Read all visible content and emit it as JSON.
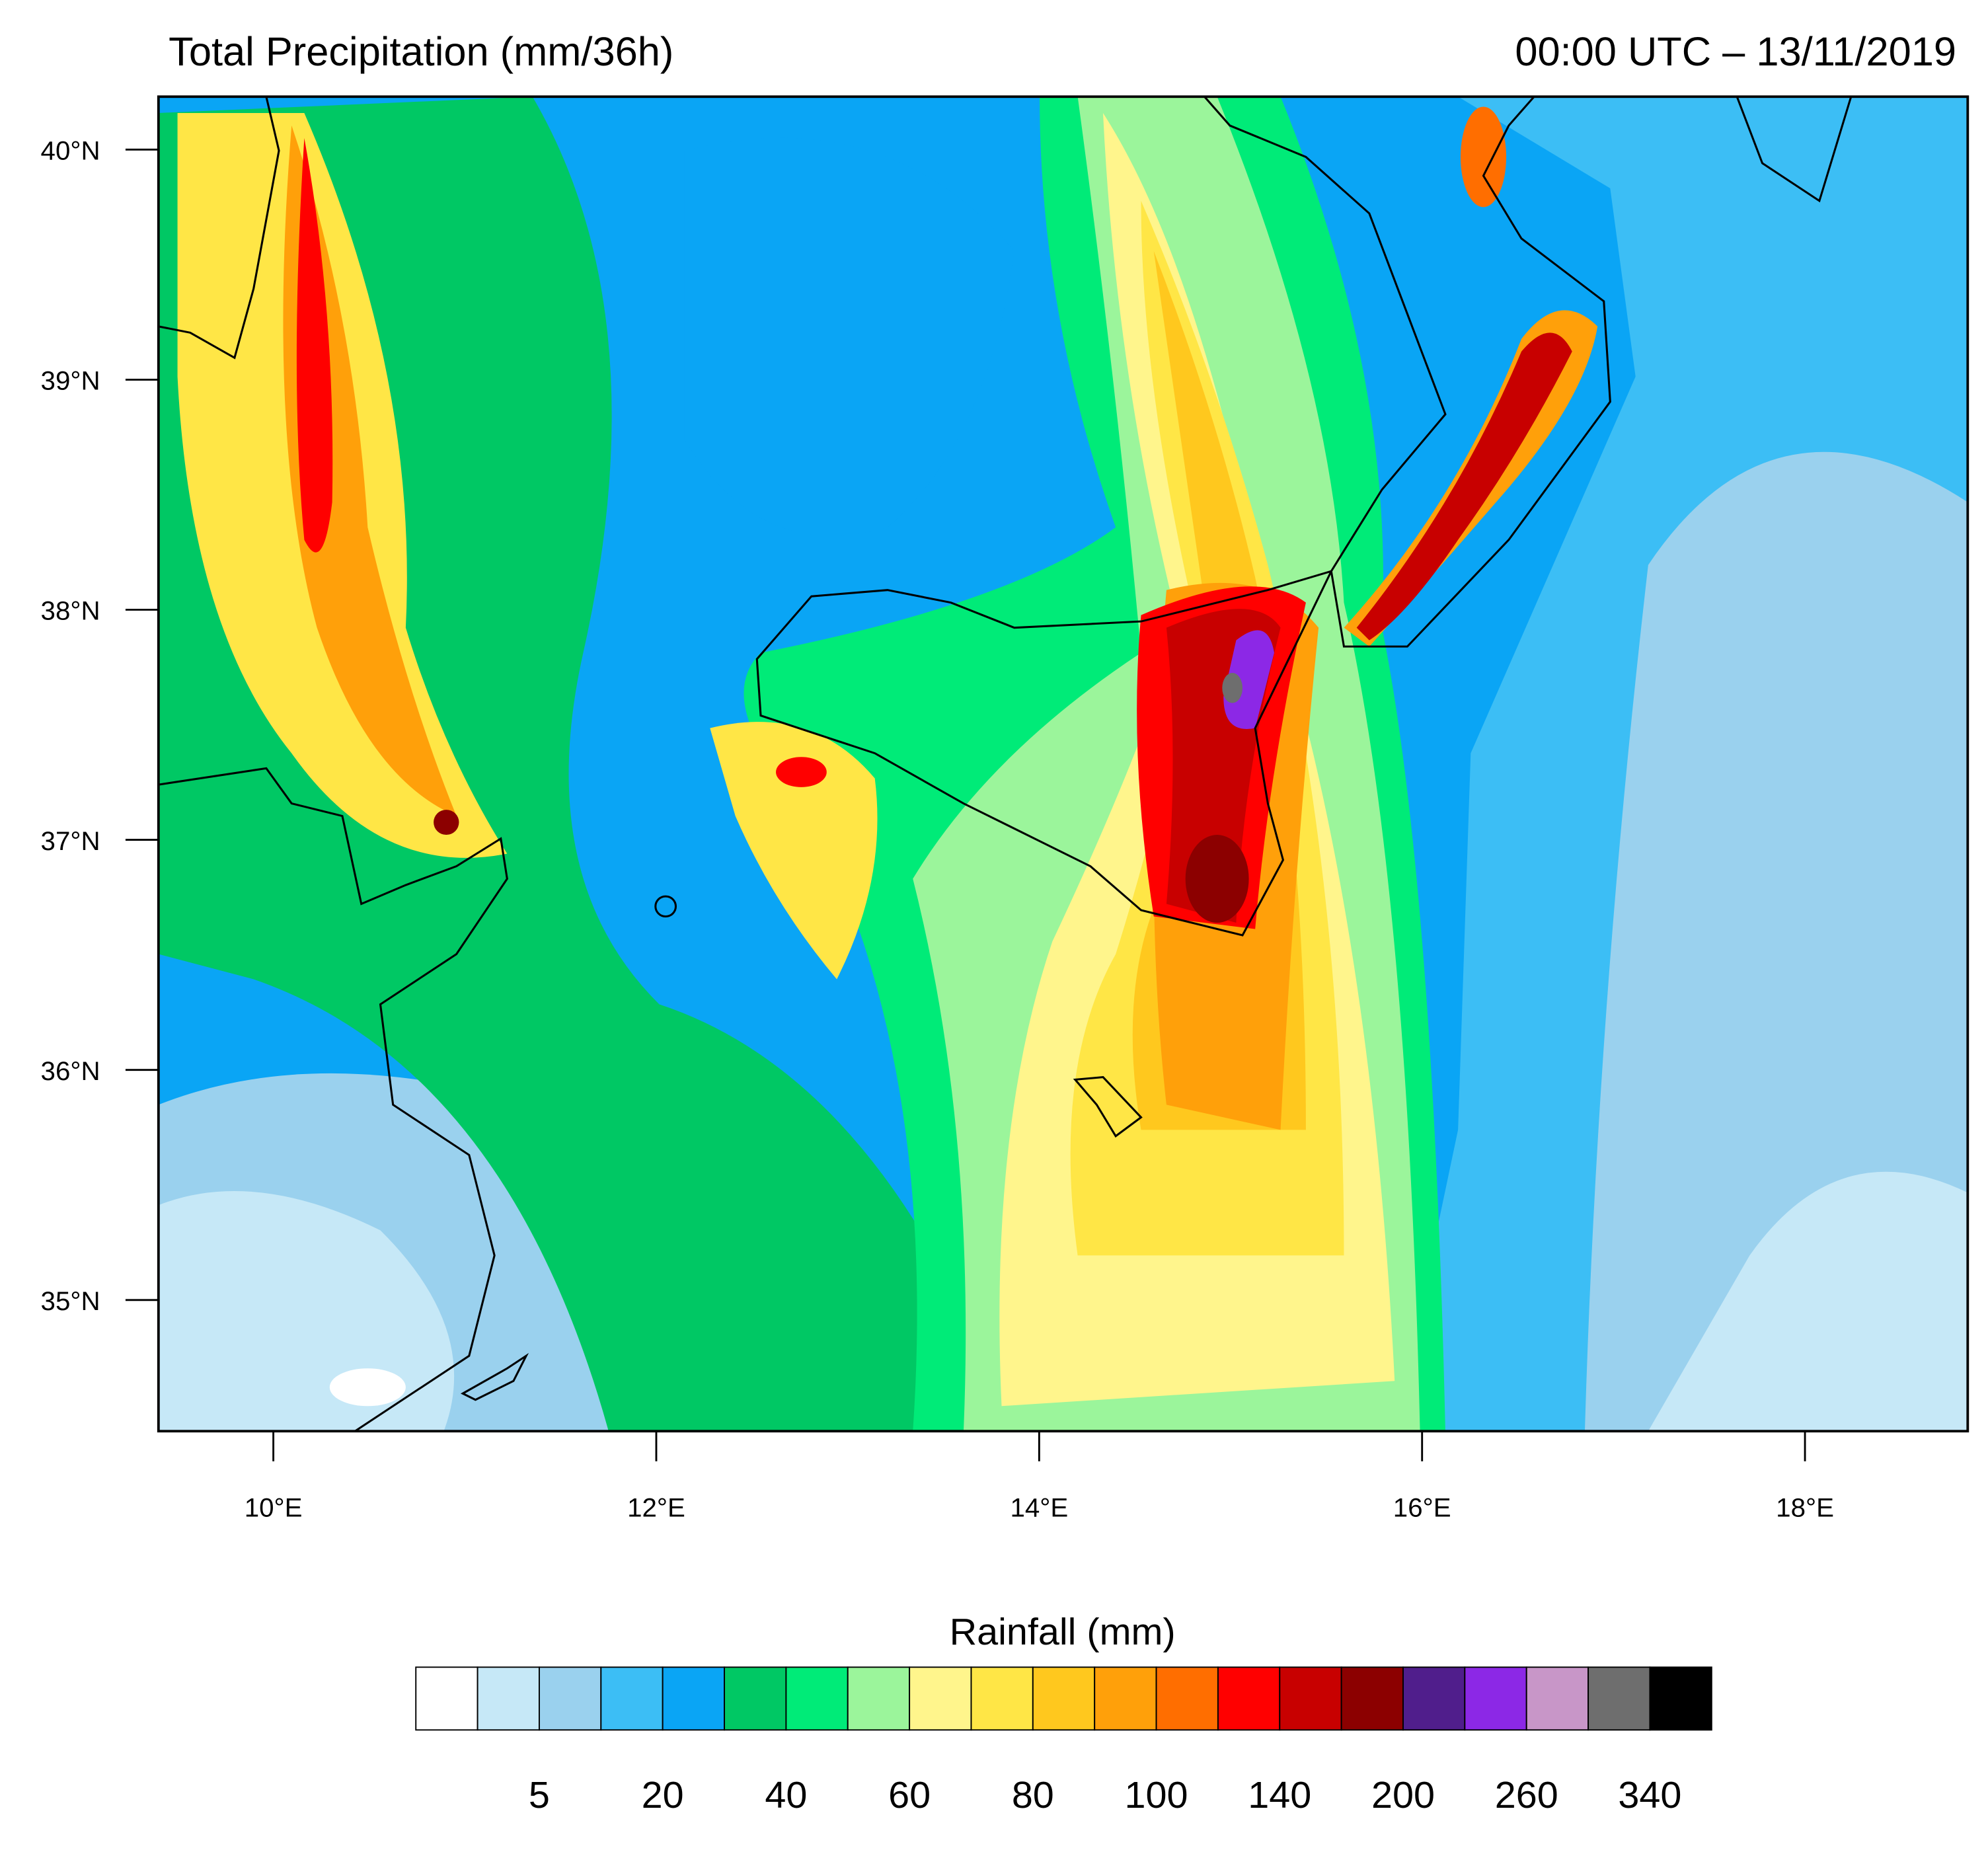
{
  "chart_data": {
    "type": "map",
    "title": "Total Precipitation (mm/36h)",
    "subtitle": "00:00 UTC – 13/11/2019",
    "xlim": [
      9.4,
      18.85
    ],
    "ylim": [
      34.43,
      40.23
    ],
    "xticks": [
      {
        "value": 10,
        "label": "10°E"
      },
      {
        "value": 12,
        "label": "12°E"
      },
      {
        "value": 14,
        "label": "14°E"
      },
      {
        "value": 16,
        "label": "16°E"
      },
      {
        "value": 18,
        "label": "18°E"
      }
    ],
    "yticks": [
      {
        "value": 35,
        "label": "35°N"
      },
      {
        "value": 36,
        "label": "36°N"
      },
      {
        "value": 37,
        "label": "37°N"
      },
      {
        "value": 38,
        "label": "38°N"
      },
      {
        "value": 39,
        "label": "39°N"
      },
      {
        "value": 40,
        "label": "40°N"
      }
    ],
    "colorbar": {
      "title": "Rainfall  (mm)",
      "colors": [
        "#ffffff",
        "#c6e8f7",
        "#9ad1ee",
        "#3cbef5",
        "#0aa5f5",
        "#00c864",
        "#00eb78",
        "#9bf59b",
        "#fff58c",
        "#ffe646",
        "#ffc81e",
        "#ffa00a",
        "#ff6e00",
        "#ff0000",
        "#c80000",
        "#8c0000",
        "#501e8c",
        "#8c28e6",
        "#c896c8",
        "#6e6e6e",
        "#000000"
      ],
      "labels": [
        5,
        20,
        40,
        60,
        80,
        100,
        140,
        200,
        260,
        340
      ]
    }
  }
}
